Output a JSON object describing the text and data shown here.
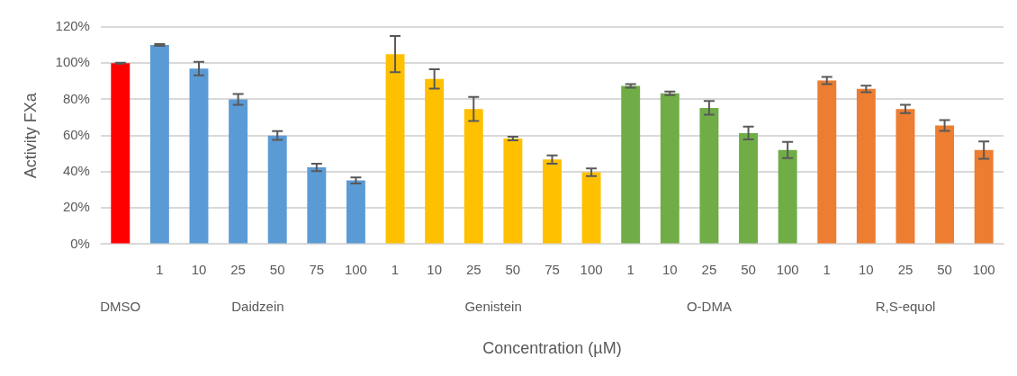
{
  "chart_data": {
    "type": "bar",
    "xlabel": "Concentration (µM)",
    "ylabel": "Activity FXa",
    "categories": [
      null,
      "1",
      "10",
      "25",
      "50",
      "75",
      "100",
      "1",
      "10",
      "25",
      "50",
      "75",
      "100",
      "1",
      "10",
      "25",
      "50",
      "100",
      "1",
      "10",
      "25",
      "50",
      "100"
    ],
    "ylim": [
      0,
      120
    ],
    "yticks": [
      {
        "value": 0,
        "label": "0%"
      },
      {
        "value": 20,
        "label": "20%"
      },
      {
        "value": 40,
        "label": "40%"
      },
      {
        "value": 60,
        "label": "60%"
      },
      {
        "value": 80,
        "label": "80%"
      },
      {
        "value": 100,
        "label": "100%"
      },
      {
        "value": 120,
        "label": "120%"
      }
    ],
    "grid": "y",
    "legend": false,
    "annotations": [
      "DMSO",
      "Daidzein",
      "Genistein",
      "O-DMA",
      "R,S-equol"
    ],
    "series": [
      {
        "color": "#ff0000",
        "values": [
          100,
          null,
          null,
          null,
          null,
          null,
          null,
          null,
          null,
          null,
          null,
          null,
          null,
          null,
          null,
          null,
          null,
          null,
          null,
          null,
          null,
          null,
          null
        ],
        "errors": [
          0.3,
          null,
          null,
          null,
          null,
          null,
          null,
          null,
          null,
          null,
          null,
          null,
          null,
          null,
          null,
          null,
          null,
          null,
          null,
          null,
          null,
          null,
          null
        ]
      },
      {
        "color": "#5b9bd5",
        "values": [
          null,
          110,
          97,
          80,
          60,
          42.4,
          35.2,
          null,
          null,
          null,
          null,
          null,
          null,
          null,
          null,
          null,
          null,
          null,
          null,
          null,
          null,
          null,
          null
        ],
        "errors": [
          null,
          0.5,
          3.7,
          3,
          2.4,
          2,
          1.7,
          null,
          null,
          null,
          null,
          null,
          null,
          null,
          null,
          null,
          null,
          null,
          null,
          null,
          null,
          null,
          null
        ]
      },
      {
        "color": "#ffc000",
        "values": [
          null,
          null,
          null,
          null,
          null,
          null,
          null,
          105,
          91.3,
          74.7,
          58.4,
          46.8,
          39.7,
          null,
          null,
          null,
          null,
          null,
          null,
          null,
          null,
          null,
          null
        ],
        "errors": [
          null,
          null,
          null,
          null,
          null,
          null,
          null,
          10,
          5.3,
          6.6,
          1,
          2.3,
          2.1,
          null,
          null,
          null,
          null,
          null,
          null,
          null,
          null,
          null,
          null
        ]
      },
      {
        "color": "#70ad47",
        "values": [
          null,
          null,
          null,
          null,
          null,
          null,
          null,
          null,
          null,
          null,
          null,
          null,
          null,
          87.4,
          83.3,
          75.3,
          61.4,
          52,
          null,
          null,
          null,
          null,
          null
        ],
        "errors": [
          null,
          null,
          null,
          null,
          null,
          null,
          null,
          null,
          null,
          null,
          null,
          null,
          null,
          1,
          1,
          3.8,
          3.5,
          4.5,
          null,
          null,
          null,
          null,
          null
        ]
      },
      {
        "color": "#ed7d31",
        "values": [
          null,
          null,
          null,
          null,
          null,
          null,
          null,
          null,
          null,
          null,
          null,
          null,
          null,
          null,
          null,
          null,
          null,
          null,
          90.4,
          85.8,
          74.7,
          65.6,
          52
        ],
        "errors": [
          null,
          null,
          null,
          null,
          null,
          null,
          null,
          null,
          null,
          null,
          null,
          null,
          null,
          null,
          null,
          null,
          null,
          null,
          2,
          1.8,
          2.3,
          3,
          4.8
        ]
      }
    ]
  }
}
